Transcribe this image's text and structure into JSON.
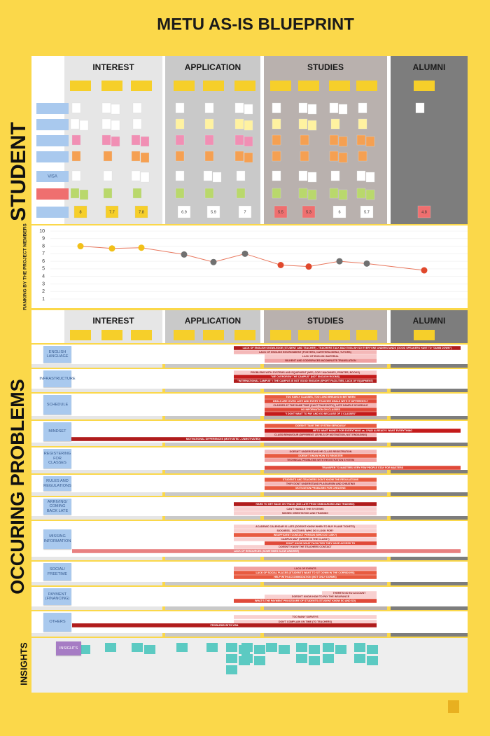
{
  "title": "METU AS-IS BLUEPRINT",
  "phases": [
    "INTEREST",
    "APPLICATION",
    "STUDIES",
    "ALUMNI"
  ],
  "sections": {
    "student": "STUDENT",
    "problems": "OCCURING PROBLEMS",
    "insights": "INSIGHTS"
  },
  "student_visa_row": "VISA",
  "chart_data": {
    "type": "line",
    "y_label": "RANKING BY THE PROJECT MEMBERS",
    "categories": [
      null,
      null,
      null,
      null,
      null,
      null,
      null,
      null,
      null,
      null,
      null
    ],
    "values": [
      8,
      7.7,
      7.8,
      6.9,
      5.9,
      7,
      5.5,
      5.3,
      6,
      5.7,
      4.8
    ],
    "colors": [
      "#f2c018",
      "#f2c018",
      "#f2c018",
      "#707070",
      "#707070",
      "#707070",
      "#e0482c",
      "#e0482c",
      "#707070",
      "#707070",
      "#e0482c"
    ],
    "line_color": "#e8765c",
    "ylim": [
      1,
      10
    ],
    "yticks": [
      1,
      2,
      3,
      4,
      5,
      6,
      7,
      8,
      9,
      10
    ],
    "grid": true
  },
  "problems": [
    {
      "label": "ENGLISH LANGUAGE",
      "bars": [
        {
          "text": "LACK OF ENGLISH KNOWLEDGE (STUDENT AND TEACHER) - TEACHERS TALK BAD ENGLISH SO EVERYONE UNDERSTANDS (GOOD SPEAKERS HAVE TO \"DUMB DOWN\")",
          "color": "#b01c1c"
        },
        {
          "text": "LACK OF ENGLISH ENVIRONMENT (POSTERS, CAFETERIA MENU, TUTORS)",
          "color": "#f4b8b8"
        },
        {
          "text": "LACK OF ENGLISH MATERIAL",
          "color": "#f8c8c8"
        },
        {
          "text": "BILKENT AND CODESPACES INCOMPLETE TRANSLATION",
          "color": "#f0a0a0"
        }
      ]
    },
    {
      "label": "INFRASTRUCTURE",
      "bars": [
        {
          "text": "PROBLEMS WITH SYSTEMS AND EQUIPMENT (WIFI, COPY MACHINES, PRINTER, BOOKS)",
          "color": "#f8c8c8"
        },
        {
          "text": "\"WE OVERGREW THE CAMPUS\" (NOT ENOUGH ROOMS)",
          "color": "#c41a1a"
        },
        {
          "text": "\"INTERNATIONAL CAMPUS\" / THE CAMPUS IS NOT GOOD ENOUGH (SPORT FACILITIES, LACK OF EQUIPMENT)",
          "color": "#b01c1c"
        }
      ]
    },
    {
      "label": "SCHEDULE",
      "bars": [
        {
          "text": "TOO EARLY CLASSES, TOO LONG BREAKS IN BETWEEN",
          "color": "#e85a40"
        },
        {
          "text": "DEALS ARE GIVEN LATE AND EVERY TEACHER DEALS WITH IT DIFFERENTLY",
          "color": "#e04a3a"
        },
        {
          "text": "CLASSES AT THE SAME TIME (CAN'T TAKE BOTH), LATE SAMPLE SCHEDULE",
          "color": "#f4b8b8"
        },
        {
          "text": "NO INFORMATION ON CLASSES",
          "color": "#e04a3a"
        },
        {
          "text": "\"I DONT WANT TO PAY AND GO BECAUSE OF 3 CLASSES\"",
          "color": "#c41a1a"
        }
      ]
    },
    {
      "label": "MINDSET",
      "bars": [
        {
          "text": "DOESN'T TAKE THE SYSTEM SERIOUSLY",
          "color": "#e85a40"
        },
        {
          "text": "METU WANT MONEY FOR EVERYTHING vs. I PAID ALREADY I WANT EVERYTHING",
          "color": "#c41a1a"
        },
        {
          "text": "CLASS BEHAVIOUR (DIFFERENT LEVELS OF MOTIVATION, NOT ENGAGING)",
          "color": "#f4b8b8"
        },
        {
          "text": "MOTIVATIONAL DIFFERENCES (MOTIVATED - UNMOTIVATED)",
          "color": "#b01c1c"
        }
      ]
    },
    {
      "label": "REGISTERING FOR CLASSES",
      "bars": [
        {
          "text": "DOESN'T UNDERSTAND HE CLASS REGISTRATION",
          "color": "#f4b8b8"
        },
        {
          "text": "DOESN'T KNOW HOW TO REGISTER",
          "color": "#e85a40"
        },
        {
          "text": "TECHNICAL PROBLEMS WITH REGISTRATION SYSTEM",
          "color": "#f0a0a0"
        },
        {
          "text": "TRANSFER TO MASTERS VERY FEW PEOPLE STAY FOR MASTERS",
          "color": "#e04a3a"
        }
      ]
    },
    {
      "label": "RULES AND REGULATIONS",
      "bars": [
        {
          "text": "STUDENTS AND TEACHERS DON'T KNOW THE REGULATIONS",
          "color": "#e85a40"
        },
        {
          "text": "THEY DONT UNDERSTAND PLAGIARISM AND CHEATING",
          "color": "#f4b8b8"
        },
        {
          "text": "MOTIVATION PROBLEMS FOR CHEATING",
          "color": "#e85a40"
        }
      ]
    },
    {
      "label": "ARRIVING/ COMING BACK LATE",
      "bars": [
        {
          "text": "HARD TO GET BACK ON TRACK (MIG LATE FROM ONBOARDING AND TRAINING)",
          "color": "#b01c1c"
        },
        {
          "text": "CAN'T HANDLE THE SYSTEMS",
          "color": "#f8d0d0"
        },
        {
          "text": "MISSED ORIENTATION AND TRAINING",
          "color": "#f8d0d0"
        }
      ]
    },
    {
      "label": "MISSING INFORMATION",
      "bars": [
        {
          "text": "ACADEMIC CALENDAR IS LATE (DOESNT KNOW WHEN TO BUY PLANE TICKETS)",
          "color": "#f8d0d0"
        },
        {
          "text": "SICKNESS - DOCTORS: WHO DO I LOOK FOR?",
          "color": "#f8d0d0"
        },
        {
          "text": "INSUFFICIENT CONTACT PERSON (WHO DO I ASK?)",
          "color": "#e85a40"
        },
        {
          "text": "CAMPUS MAP (WHERE IS THE CLASS?)",
          "color": "#f8d0d0"
        },
        {
          "text": "DON'T KNOW WHAT FACILITIES THEY HAVE ACCESS TO",
          "color": "#e04a3a"
        },
        {
          "text": "DOESN'T KNOW THE TEACHERS CONTACT",
          "color": "#f8d0d0"
        },
        {
          "text": "LACK OF RESOURCES (SOMETIMES SLOW ANSWER)",
          "color": "#e88080"
        }
      ]
    },
    {
      "label": "SOCIAL/ FREETIME",
      "bars": [
        {
          "text": "LACK OF EVENTS",
          "color": "#f0a0a0"
        },
        {
          "text": "LACK OF SOCIAL PLACES (STUDENTS WANT TO SIT DOWN IN THE CORRIDORS)",
          "color": "#e85a40"
        },
        {
          "text": "HELP WITH ACCOMMODATION (NOT ONLY DORMS)",
          "color": "#e85a40"
        }
      ]
    },
    {
      "label": "PAYMENT (FINANCING)",
      "bars": [
        {
          "text": "THERE'S NO EU ACCOUNT",
          "color": "#f8d0d0"
        },
        {
          "text": "DOESN'T KNOW HOW TO PAY THE INSURANCE",
          "color": "#f8d0d0"
        },
        {
          "text": "WHAT'S THE PAYMENT PROCEDURE OF STUDENTS (STUDENT KNOW SO AND SO)",
          "color": "#e04a3a"
        }
      ]
    },
    {
      "label": "OTHERS",
      "bars": [
        {
          "text": "TOO MANY SURVEYS",
          "color": "#f8d0d0"
        },
        {
          "text": "DON'T COMPLAIN ON TIME (TO TEACHERS)",
          "color": "#f8d0d0"
        },
        {
          "text": "PROBLEMS WITH VISA",
          "color": "#b01c1c"
        }
      ]
    }
  ]
}
